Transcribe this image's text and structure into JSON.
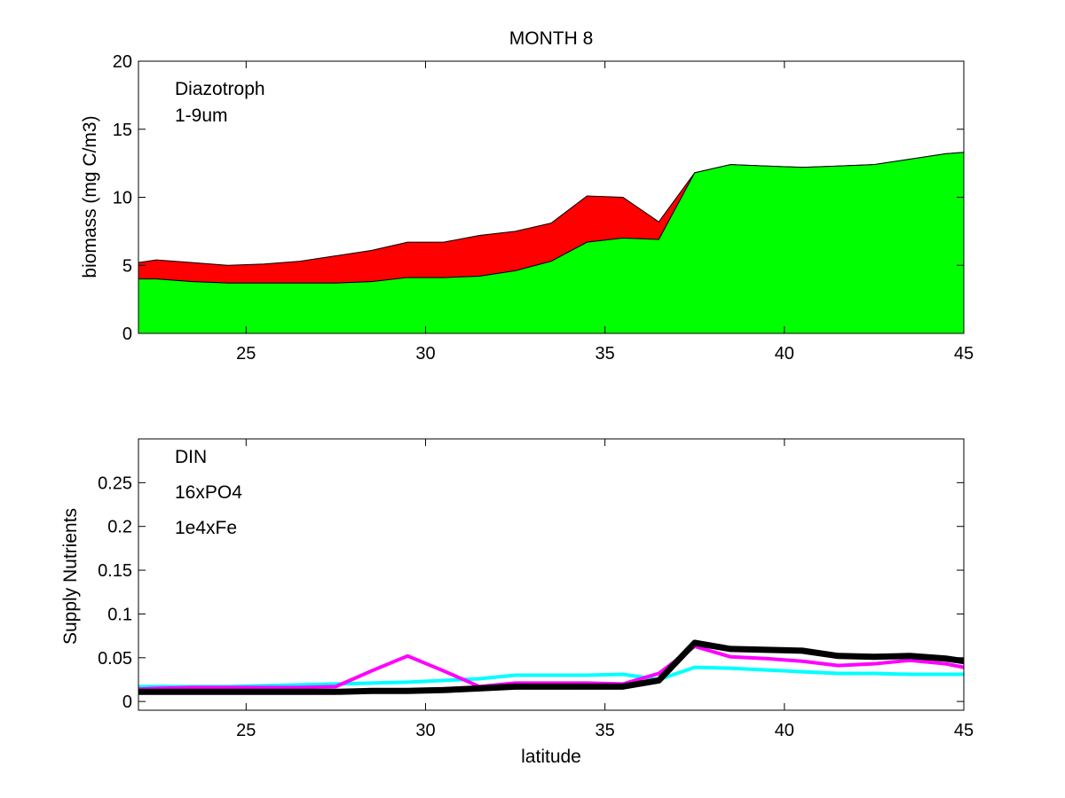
{
  "chart_data": [
    {
      "type": "area",
      "stacked": true,
      "title": "MONTH 8",
      "xlabel": "",
      "ylabel": "biomass (mg C/m3)",
      "xlim": [
        22,
        45
      ],
      "ylim": [
        0,
        20
      ],
      "xticks": [
        25,
        30,
        35,
        40,
        45
      ],
      "yticks": [
        0,
        5,
        10,
        15,
        20
      ],
      "legend_position": "top-left",
      "x": [
        22,
        22.5,
        23.5,
        24.5,
        25.5,
        26.5,
        27.5,
        28.5,
        29.5,
        30.5,
        31.5,
        32.5,
        33.5,
        34.5,
        35.5,
        36.5,
        37.5,
        38.5,
        39.5,
        40.5,
        41.5,
        42.5,
        43.5,
        44.5,
        45
      ],
      "series": [
        {
          "name": "1-9um",
          "color": "#00ff00",
          "values": [
            4.0,
            4.0,
            3.8,
            3.7,
            3.7,
            3.7,
            3.7,
            3.8,
            4.1,
            4.1,
            4.2,
            4.6,
            5.3,
            6.7,
            7.0,
            6.9,
            11.8,
            12.4,
            12.3,
            12.2,
            12.3,
            12.4,
            12.8,
            13.2,
            13.3
          ],
          "top": [
            4.0,
            4.0,
            3.8,
            3.7,
            3.7,
            3.7,
            3.7,
            3.8,
            4.1,
            4.1,
            4.2,
            4.6,
            5.3,
            6.7,
            7.0,
            6.9,
            11.8,
            12.4,
            12.3,
            12.2,
            12.3,
            12.4,
            12.8,
            13.2,
            13.3
          ]
        },
        {
          "name": "Diazotroph",
          "color": "#ff0000",
          "values": [
            1.2,
            1.4,
            1.4,
            1.3,
            1.4,
            1.6,
            2.0,
            2.3,
            2.6,
            2.6,
            3.0,
            2.9,
            2.8,
            3.4,
            3.0,
            1.3,
            0.0,
            0,
            0,
            0,
            0,
            0,
            0,
            0,
            0
          ],
          "top": [
            5.2,
            5.4,
            5.2,
            5.0,
            5.1,
            5.3,
            5.7,
            6.1,
            6.7,
            6.7,
            7.2,
            7.5,
            8.1,
            10.1,
            10.0,
            8.2,
            11.8,
            12.4,
            12.3,
            12.2,
            12.3,
            12.4,
            12.8,
            13.2,
            13.3
          ]
        }
      ]
    },
    {
      "type": "line",
      "title": "",
      "xlabel": "latitude",
      "ylabel": "Supply Nutrients",
      "xlim": [
        22,
        45
      ],
      "ylim": [
        -0.01,
        0.3
      ],
      "xticks": [
        25,
        30,
        35,
        40,
        45
      ],
      "yticks": [
        0,
        0.05,
        0.1,
        0.15,
        0.2,
        0.25
      ],
      "ytick_labels": [
        "0",
        "0.05",
        "0.1",
        "0.15",
        "0.2",
        "0.25"
      ],
      "legend_position": "top-left",
      "x": [
        22,
        22.5,
        23.5,
        24.5,
        25.5,
        26.5,
        27.5,
        28.5,
        29.5,
        30.5,
        31.5,
        32.5,
        33.5,
        34.5,
        35.5,
        36.5,
        37.5,
        38.5,
        39.5,
        40.5,
        41.5,
        42.5,
        43.5,
        44.5,
        45
      ],
      "series": [
        {
          "name": "DIN",
          "color": "#000000",
          "width": 7,
          "values": [
            0.011,
            0.011,
            0.011,
            0.011,
            0.011,
            0.011,
            0.011,
            0.012,
            0.012,
            0.013,
            0.015,
            0.017,
            0.017,
            0.017,
            0.017,
            0.024,
            0.067,
            0.06,
            0.059,
            0.058,
            0.052,
            0.051,
            0.052,
            0.049,
            0.046
          ]
        },
        {
          "name": "16xPO4",
          "color": "#ff00ff",
          "width": 4,
          "values": [
            0.014,
            0.015,
            0.016,
            0.016,
            0.016,
            0.016,
            0.017,
            0.035,
            0.052,
            0.035,
            0.017,
            0.021,
            0.021,
            0.021,
            0.02,
            0.032,
            0.063,
            0.051,
            0.049,
            0.046,
            0.041,
            0.043,
            0.047,
            0.043,
            0.039
          ]
        },
        {
          "name": "1e4xFe",
          "color": "#00ffff",
          "width": 4,
          "values": [
            0.017,
            0.017,
            0.017,
            0.017,
            0.018,
            0.019,
            0.02,
            0.021,
            0.022,
            0.024,
            0.026,
            0.03,
            0.03,
            0.03,
            0.031,
            0.025,
            0.039,
            0.038,
            0.036,
            0.034,
            0.032,
            0.032,
            0.031,
            0.031,
            0.031
          ]
        }
      ]
    }
  ]
}
